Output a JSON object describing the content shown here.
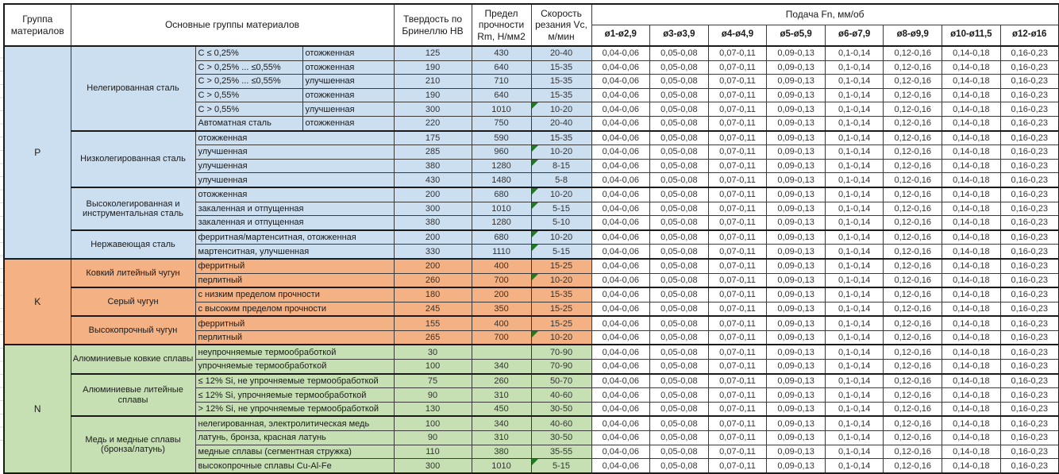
{
  "header": {
    "col_group": "Группа материалов",
    "col_main_groups": "Основные группы материалов",
    "col_hardness": "Твердость по Бринеллю HB",
    "col_strength": "Предел прочности Rm, Н/мм2",
    "col_speed": "Скорость резания Vc, м/мин",
    "feed_title": "Подача Fn, мм/об",
    "feed_cols": [
      "ø1-ø2,9",
      "ø3-ø3,9",
      "ø4-ø4,9",
      "ø5-ø5,9",
      "ø6-ø7,9",
      "ø8-ø9,9",
      "ø10-ø11,5",
      "ø12-ø16"
    ]
  },
  "feed_values": [
    "0,04-0,06",
    "0,05-0,08",
    "0,07-0,11",
    "0,09-0,13",
    "0,1-0,14",
    "0,12-0,16",
    "0,14-0,18",
    "0,16-0,23"
  ],
  "colors": {
    "group_p": "#CCDFF1",
    "group_k": "#F4B183",
    "group_n": "#C6E0B4",
    "marker_green": "#1E7B1E"
  },
  "groups": [
    {
      "code": "P",
      "color": "#CCDFF1",
      "sections": [
        {
          "name": "Нелегированная сталь",
          "rows": [
            {
              "desc": [
                "C ≤ 0,25%",
                "отожженная"
              ],
              "hb": "125",
              "rm": "430",
              "vc": "20-40",
              "note": false
            },
            {
              "desc": [
                "C > 0,25% ... ≤0,55%",
                "отожженная"
              ],
              "hb": "190",
              "rm": "640",
              "vc": "15-35",
              "note": false
            },
            {
              "desc": [
                "C > 0,25% ... ≤0,55%",
                "улучшенная"
              ],
              "hb": "210",
              "rm": "710",
              "vc": "15-35",
              "note": false
            },
            {
              "desc": [
                "C > 0,55%",
                "отожженная"
              ],
              "hb": "190",
              "rm": "640",
              "vc": "15-35",
              "note": false
            },
            {
              "desc": [
                "C > 0,55%",
                "улучшенная"
              ],
              "hb": "300",
              "rm": "1010",
              "vc": "10-20",
              "note": true
            },
            {
              "desc": [
                "Автоматная сталь",
                "отожженная"
              ],
              "hb": "220",
              "rm": "750",
              "vc": "20-40",
              "note": false
            }
          ]
        },
        {
          "name": "Низколегированная сталь",
          "rows": [
            {
              "desc": [
                "отожженная"
              ],
              "hb": "175",
              "rm": "590",
              "vc": "15-35",
              "note": false
            },
            {
              "desc": [
                "улучшенная"
              ],
              "hb": "285",
              "rm": "960",
              "vc": "10-20",
              "note": true
            },
            {
              "desc": [
                "улучшенная"
              ],
              "hb": "380",
              "rm": "1280",
              "vc": "8-15",
              "note": true
            },
            {
              "desc": [
                "улучшенная"
              ],
              "hb": "430",
              "rm": "1480",
              "vc": "5-8",
              "note": false
            }
          ]
        },
        {
          "name": "Высоколегированная и инструментальная сталь",
          "rows": [
            {
              "desc": [
                "отожженная"
              ],
              "hb": "200",
              "rm": "680",
              "vc": "10-20",
              "note": true
            },
            {
              "desc": [
                "закаленная и отпущенная"
              ],
              "hb": "300",
              "rm": "1010",
              "vc": "5-15",
              "note": true
            },
            {
              "desc": [
                "закаленная и отпущенная"
              ],
              "hb": "380",
              "rm": "1280",
              "vc": "5-10",
              "note": false
            }
          ]
        },
        {
          "name": "Нержавеющая сталь",
          "rows": [
            {
              "desc": [
                "ферритная/мартенситная, отожженная"
              ],
              "hb": "200",
              "rm": "680",
              "vc": "10-20",
              "note": true
            },
            {
              "desc": [
                "мартенситная, улучшенная"
              ],
              "hb": "330",
              "rm": "1110",
              "vc": "5-15",
              "note": true
            }
          ]
        }
      ]
    },
    {
      "code": "K",
      "color": "#F4B183",
      "sections": [
        {
          "name": "Ковкий литейный чугун",
          "rows": [
            {
              "desc": [
                "ферритный"
              ],
              "hb": "200",
              "rm": "400",
              "vc": "15-25",
              "note": false
            },
            {
              "desc": [
                "перлитный"
              ],
              "hb": "260",
              "rm": "700",
              "vc": "10-20",
              "note": true
            }
          ]
        },
        {
          "name": "Серый чугун",
          "rows": [
            {
              "desc": [
                "с низким пределом прочности"
              ],
              "hb": "180",
              "rm": "200",
              "vc": "15-35",
              "note": false
            },
            {
              "desc": [
                "с высоким пределом прочности"
              ],
              "hb": "245",
              "rm": "350",
              "vc": "15-25",
              "note": false
            }
          ]
        },
        {
          "name": "Высокопрочный чугун",
          "rows": [
            {
              "desc": [
                "ферритный"
              ],
              "hb": "155",
              "rm": "400",
              "vc": "15-25",
              "note": false
            },
            {
              "desc": [
                "перлитный"
              ],
              "hb": "265",
              "rm": "700",
              "vc": "10-20",
              "note": true
            }
          ]
        }
      ]
    },
    {
      "code": "N",
      "color": "#C6E0B4",
      "sections": [
        {
          "name": "Алюминиевые ковкие сплавы",
          "rows": [
            {
              "desc": [
                "неупрочняемые термообработкой"
              ],
              "hb": "30",
              "rm": "",
              "vc": "70-90",
              "note": false
            },
            {
              "desc": [
                "упрочняемые термообработкой"
              ],
              "hb": "100",
              "rm": "340",
              "vc": "70-90",
              "note": false
            }
          ]
        },
        {
          "name": "Алюминиевые литейные сплавы",
          "rows": [
            {
              "desc": [
                "≤ 12% Si, не упрочняемые термообработкой"
              ],
              "hb": "75",
              "rm": "260",
              "vc": "50-70",
              "note": false
            },
            {
              "desc": [
                "≤ 12% Si, упрочняемые термообработкой"
              ],
              "hb": "90",
              "rm": "310",
              "vc": "40-60",
              "note": false
            },
            {
              "desc": [
                "> 12% Si, не упрочняемые термообработкой"
              ],
              "hb": "130",
              "rm": "450",
              "vc": "30-50",
              "note": false
            }
          ]
        },
        {
          "name": "Медь и медные сплавы (бронза/латунь)",
          "rows": [
            {
              "desc": [
                "нелегированная, электролитическая медь"
              ],
              "hb": "100",
              "rm": "340",
              "vc": "40-60",
              "note": false
            },
            {
              "desc": [
                "латунь, бронза, красная латунь"
              ],
              "hb": "90",
              "rm": "310",
              "vc": "30-50",
              "note": false
            },
            {
              "desc": [
                "медные сплавы (сегментная стружка)"
              ],
              "hb": "110",
              "rm": "380",
              "vc": "35-55",
              "note": false
            },
            {
              "desc": [
                "высокопрочные сплавы Cu-Al-Fe"
              ],
              "hb": "300",
              "rm": "1010",
              "vc": "5-15",
              "note": true
            }
          ]
        }
      ]
    }
  ]
}
